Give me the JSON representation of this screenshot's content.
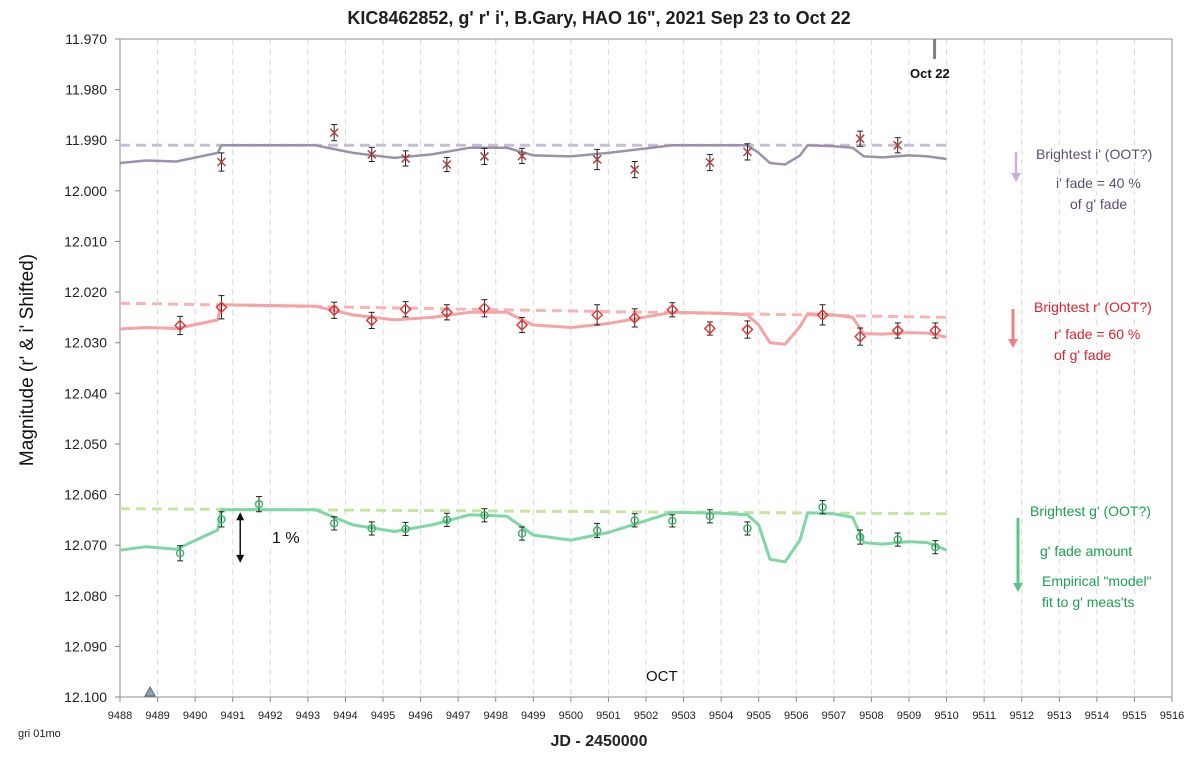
{
  "title": "KIC8462852, g' r' i', B.Gary, HAO 16\", 2021 Sep 23 to Oct 22",
  "xlabel": "JD - 2450000",
  "ylabel": "Magnitude  (r' & i' Shifted)",
  "corner_note": "gri 01mo",
  "annotations": {
    "oct22": "Oct 22",
    "oct": "OCT",
    "one_percent": "1 %",
    "i_brightest": "Brightest i' (OOT?)",
    "i_fade_1": "i' fade = 40 %",
    "i_fade_2": "of g' fade",
    "r_brightest": "Brightest r' (OOT?)",
    "r_fade_1": "r' fade = 60 %",
    "r_fade_2": "of g' fade",
    "g_brightest": "Brightest g' (OOT?)",
    "g_fade": "g' fade amount",
    "g_model_1": "Empirical \"model\"",
    "g_model_2": "fit to g' meas'ts"
  },
  "colors": {
    "i_line": "#9d90ad",
    "i_dash": "#c8bdd8",
    "i_marker": "#b04040",
    "r_line": "#f5a3a3",
    "r_dash": "#f8b4b4",
    "r_marker": "#e53a3a",
    "g_line": "#7dd8a5",
    "g_dash": "#c6e5a0",
    "g_marker": "#3cb96a",
    "grid": "#d9d9d9",
    "arrow_i": "#c8b3d6",
    "arrow_r": "#f08080",
    "arrow_g": "#5cc585"
  },
  "chart_data": {
    "type": "scatter",
    "xlim": [
      9488,
      9516
    ],
    "ylim": [
      12.1,
      11.97
    ],
    "y_inverted": true,
    "x_ticks": [
      9488,
      9489,
      9490,
      9491,
      9492,
      9493,
      9494,
      9495,
      9496,
      9497,
      9498,
      9499,
      9500,
      9501,
      9502,
      9503,
      9504,
      9505,
      9506,
      9507,
      9508,
      9509,
      9510,
      9511,
      9512,
      9513,
      9514,
      9515,
      9516
    ],
    "y_ticks": [
      "11.970",
      "11.980",
      "11.990",
      "12.000",
      "12.010",
      "12.020",
      "12.030",
      "12.040",
      "12.050",
      "12.060",
      "12.070",
      "12.080",
      "12.090",
      "12.100"
    ],
    "grid": "vertical dashed",
    "series": [
      {
        "key": "i",
        "marker": "x",
        "points": [
          [
            9490.7,
            11.9943,
            0.0018
          ],
          [
            9493.7,
            11.9885,
            0.0016
          ],
          [
            9494.7,
            11.9928,
            0.0014
          ],
          [
            9495.6,
            11.9936,
            0.0015
          ],
          [
            9496.7,
            11.9948,
            0.0014
          ],
          [
            9497.7,
            11.9932,
            0.0016
          ],
          [
            9498.7,
            11.9931,
            0.0015
          ],
          [
            9500.7,
            11.9938,
            0.002
          ],
          [
            9501.7,
            11.9958,
            0.0016
          ],
          [
            9503.7,
            11.9944,
            0.0016
          ],
          [
            9504.7,
            11.9923,
            0.0016
          ],
          [
            9507.7,
            11.9897,
            0.0015
          ],
          [
            9508.7,
            11.991,
            0.0015
          ]
        ],
        "model": [
          [
            9488,
            11.9945
          ],
          [
            9488.7,
            11.994
          ],
          [
            9489.5,
            11.9942
          ],
          [
            9490.6,
            11.9925
          ],
          [
            9490.7,
            11.991
          ],
          [
            9493.2,
            11.991
          ],
          [
            9494.2,
            11.9925
          ],
          [
            9495.3,
            11.9935
          ],
          [
            9496.3,
            11.9928
          ],
          [
            9497.3,
            11.9915
          ],
          [
            9498.3,
            11.9915
          ],
          [
            9499,
            11.993
          ],
          [
            9500,
            11.9932
          ],
          [
            9501,
            11.9925
          ],
          [
            9502.7,
            11.991
          ],
          [
            9504,
            11.991
          ],
          [
            9504.7,
            11.991
          ],
          [
            9505,
            11.9925
          ],
          [
            9505.3,
            11.9945
          ],
          [
            9505.7,
            11.9948
          ],
          [
            9506.1,
            11.993
          ],
          [
            9506.3,
            11.991
          ],
          [
            9507,
            11.9912
          ],
          [
            9507.5,
            11.9915
          ],
          [
            9507.8,
            11.9932
          ],
          [
            9508.3,
            11.9934
          ],
          [
            9509,
            11.993
          ],
          [
            9509.5,
            11.9932
          ],
          [
            9510,
            11.9937
          ]
        ],
        "oot": [
          [
            9488,
            11.991
          ],
          [
            9510,
            11.991
          ]
        ]
      },
      {
        "key": "r",
        "marker": "diamond",
        "points": [
          [
            9489.6,
            12.0266,
            0.0018
          ],
          [
            9490.7,
            12.023,
            0.0023
          ],
          [
            9493.7,
            12.0236,
            0.0016
          ],
          [
            9494.7,
            12.0256,
            0.0016
          ],
          [
            9495.6,
            12.0234,
            0.0015
          ],
          [
            9496.7,
            12.024,
            0.0015
          ],
          [
            9497.7,
            12.0232,
            0.0017
          ],
          [
            9498.7,
            12.0265,
            0.0015
          ],
          [
            9500.7,
            12.0245,
            0.002
          ],
          [
            9501.7,
            12.0251,
            0.0018
          ],
          [
            9502.7,
            12.0235,
            0.0014
          ],
          [
            9503.7,
            12.0272,
            0.0013
          ],
          [
            9504.7,
            12.0274,
            0.0017
          ],
          [
            9506.7,
            12.0245,
            0.002
          ],
          [
            9507.7,
            12.0288,
            0.0017
          ],
          [
            9508.7,
            12.0276,
            0.0015
          ],
          [
            9509.7,
            12.0276,
            0.0015
          ]
        ],
        "model": [
          [
            9488,
            12.0273
          ],
          [
            9488.7,
            12.027
          ],
          [
            9489.5,
            12.0272
          ],
          [
            9490.6,
            12.0255
          ],
          [
            9490.7,
            12.0225
          ],
          [
            9493.2,
            12.0228
          ],
          [
            9494.2,
            12.0245
          ],
          [
            9495.3,
            12.0255
          ],
          [
            9496.3,
            12.025
          ],
          [
            9497.3,
            12.024
          ],
          [
            9498.3,
            12.024
          ],
          [
            9499,
            12.0265
          ],
          [
            9500,
            12.027
          ],
          [
            9501,
            12.0262
          ],
          [
            9502.7,
            12.024
          ],
          [
            9504,
            12.0242
          ],
          [
            9504.7,
            12.0245
          ],
          [
            9505,
            12.0265
          ],
          [
            9505.3,
            12.03
          ],
          [
            9505.7,
            12.0303
          ],
          [
            9506.1,
            12.0268
          ],
          [
            9506.3,
            12.0243
          ],
          [
            9507,
            12.0245
          ],
          [
            9507.5,
            12.025
          ],
          [
            9507.8,
            12.0282
          ],
          [
            9508.3,
            12.0283
          ],
          [
            9509,
            12.028
          ],
          [
            9509.5,
            12.0281
          ],
          [
            9510,
            12.0289
          ]
        ],
        "oot": [
          [
            9488,
            12.0222
          ],
          [
            9510,
            12.025
          ]
        ]
      },
      {
        "key": "g",
        "marker": "circle",
        "points": [
          [
            9489.6,
            12.0716,
            0.0015
          ],
          [
            9490.7,
            12.0649,
            0.0015
          ],
          [
            9491.7,
            12.0619,
            0.0015
          ],
          [
            9493.7,
            12.0657,
            0.0013
          ],
          [
            9494.7,
            12.0667,
            0.0013
          ],
          [
            9495.6,
            12.0668,
            0.0013
          ],
          [
            9496.7,
            12.065,
            0.0013
          ],
          [
            9497.7,
            12.0641,
            0.0013
          ],
          [
            9498.7,
            12.0677,
            0.0013
          ],
          [
            9500.7,
            12.0671,
            0.0014
          ],
          [
            9501.7,
            12.0651,
            0.0013
          ],
          [
            9502.7,
            12.0652,
            0.0012
          ],
          [
            9503.7,
            12.0643,
            0.0013
          ],
          [
            9504.7,
            12.0667,
            0.0013
          ],
          [
            9506.7,
            12.0625,
            0.0013
          ],
          [
            9507.7,
            12.0684,
            0.0014
          ],
          [
            9508.7,
            12.0689,
            0.0013
          ],
          [
            9509.7,
            12.0704,
            0.0013
          ]
        ],
        "model": [
          [
            9488,
            12.071
          ],
          [
            9488.7,
            12.0703
          ],
          [
            9489.5,
            12.0708
          ],
          [
            9490.6,
            12.067
          ],
          [
            9490.7,
            12.063
          ],
          [
            9493.2,
            12.063
          ],
          [
            9494.2,
            12.066
          ],
          [
            9495.3,
            12.0673
          ],
          [
            9496.3,
            12.066
          ],
          [
            9497.3,
            12.064
          ],
          [
            9498.3,
            12.0643
          ],
          [
            9499,
            12.068
          ],
          [
            9500,
            12.069
          ],
          [
            9501,
            12.0675
          ],
          [
            9502.7,
            12.0635
          ],
          [
            9504,
            12.0637
          ],
          [
            9504.7,
            12.064
          ],
          [
            9505,
            12.066
          ],
          [
            9505.3,
            12.0728
          ],
          [
            9505.7,
            12.0733
          ],
          [
            9506.1,
            12.069
          ],
          [
            9506.3,
            12.0636
          ],
          [
            9507,
            12.0638
          ],
          [
            9507.5,
            12.0645
          ],
          [
            9507.8,
            12.0695
          ],
          [
            9508.3,
            12.0698
          ],
          [
            9509,
            12.0693
          ],
          [
            9509.5,
            12.0695
          ],
          [
            9510,
            12.071
          ]
        ],
        "oot": [
          [
            9488,
            12.0628
          ],
          [
            9510,
            12.0638
          ]
        ]
      }
    ]
  }
}
